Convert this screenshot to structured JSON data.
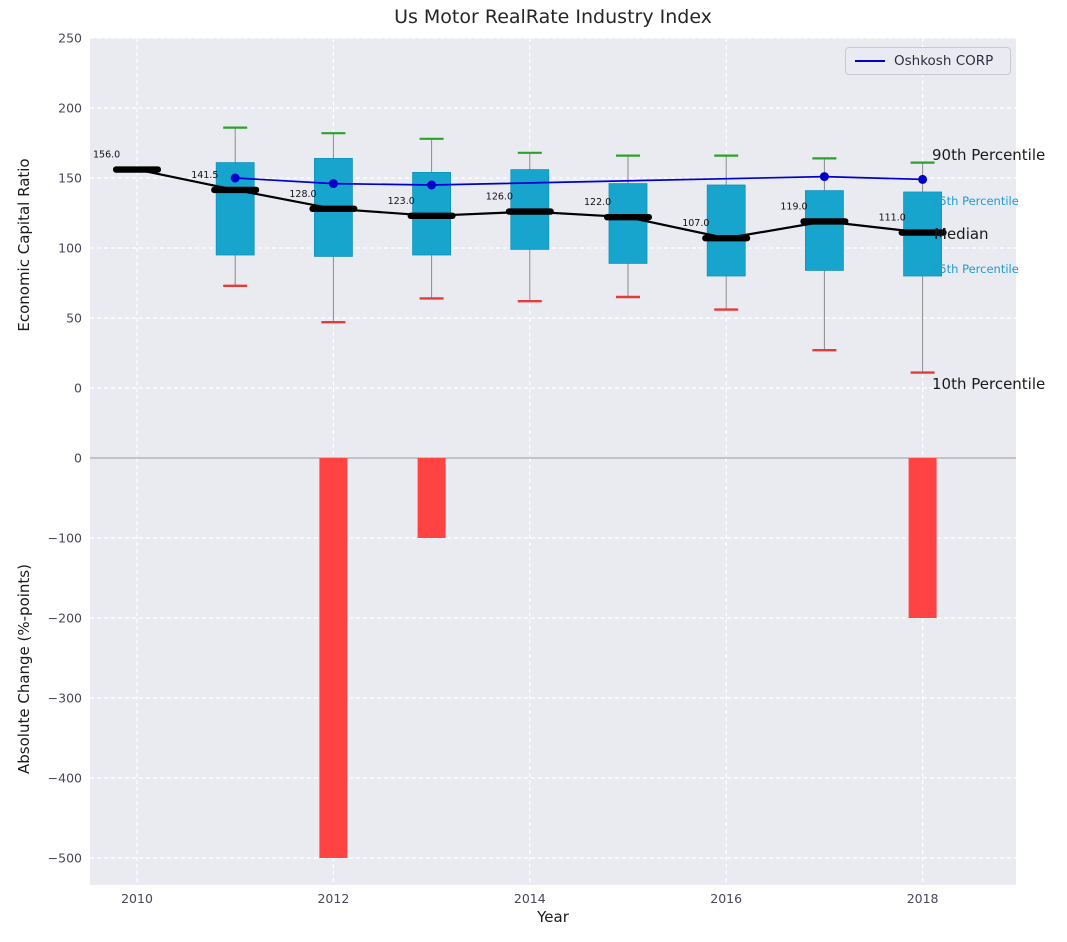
{
  "colors": {
    "plot_bg": "#eaebf1",
    "grid": "#ffffff",
    "box": "#18a5cd",
    "box_edge": "#1391b8",
    "cap_top": "#2ca02c",
    "cap_bottom": "#e43b3b",
    "whisker": "#8a8a8a",
    "median": "#000000",
    "oshkosh": "#0000cd",
    "bar": "#ff4343",
    "zero_line": "#aaaaaa",
    "tick_text": "#46465a",
    "label_text": "#1a1a1a",
    "annotation_cyan": "#1f9bcd"
  },
  "chart_data": [
    {
      "type": "boxplot",
      "title": "Us Motor RealRate Industry Index",
      "ylabel": "Economic Capital Ratio",
      "ylim": [
        -45,
        250
      ],
      "grid": true,
      "legend": {
        "label": "Oshkosh CORP",
        "position": "upper right"
      },
      "yticks": [
        {
          "v": 250,
          "label": "250"
        },
        {
          "v": 200,
          "label": "200"
        },
        {
          "v": 150,
          "label": "150"
        },
        {
          "v": 100,
          "label": "100"
        },
        {
          "v": 50,
          "label": "50"
        },
        {
          "v": 0,
          "label": "0"
        }
      ],
      "stats": [
        {
          "year": 2010,
          "median": 156.0,
          "label": "156.0"
        },
        {
          "year": 2011,
          "median": 141.5,
          "label": "141.5",
          "q1": 95,
          "q3": 161,
          "p10": 73,
          "p90": 186
        },
        {
          "year": 2012,
          "median": 128.0,
          "label": "128.0",
          "q1": 94,
          "q3": 164,
          "p10": 47,
          "p90": 182
        },
        {
          "year": 2013,
          "median": 123.0,
          "label": "123.0",
          "q1": 95,
          "q3": 154,
          "p10": 64,
          "p90": 178
        },
        {
          "year": 2014,
          "median": 126.0,
          "label": "126.0",
          "q1": 99,
          "q3": 156,
          "p10": 62,
          "p90": 168
        },
        {
          "year": 2015,
          "median": 122.0,
          "label": "122.0",
          "q1": 89,
          "q3": 146,
          "p10": 65,
          "p90": 166
        },
        {
          "year": 2016,
          "median": 107.0,
          "label": "107.0",
          "q1": 80,
          "q3": 145,
          "p10": 56,
          "p90": 166
        },
        {
          "year": 2017,
          "median": 119.0,
          "label": "119.0",
          "q1": 84,
          "q3": 141,
          "p10": 27,
          "p90": 164
        },
        {
          "year": 2018,
          "median": 111.0,
          "label": "111.0",
          "q1": 80,
          "q3": 140,
          "p10": 11,
          "p90": 161
        }
      ],
      "series": [
        {
          "name": "Oshkosh CORP",
          "points": [
            {
              "year": 2011,
              "v": 150
            },
            {
              "year": 2012,
              "v": 146
            },
            {
              "year": 2013,
              "v": 145
            },
            {
              "year": 2017,
              "v": 151
            },
            {
              "year": 2018,
              "v": 149
            }
          ]
        }
      ],
      "annotations": [
        {
          "text": "90th Percentile",
          "size": "large",
          "color": "black"
        },
        {
          "text": "75th Percentile",
          "size": "small",
          "color": "cyan"
        },
        {
          "text": "Median",
          "size": "large",
          "color": "black"
        },
        {
          "text": "25th Percentile",
          "size": "small",
          "color": "cyan"
        },
        {
          "text": "10th Percentile",
          "size": "large",
          "color": "black"
        }
      ]
    },
    {
      "type": "bar",
      "ylabel": "Absolute Change (%-points)",
      "xlabel": "Year",
      "ylim": [
        -534,
        8
      ],
      "grid": true,
      "yticks": [
        {
          "v": 0,
          "label": "0"
        },
        {
          "v": -100,
          "label": "−100"
        },
        {
          "v": -200,
          "label": "−200"
        },
        {
          "v": -300,
          "label": "−300"
        },
        {
          "v": -400,
          "label": "−400"
        },
        {
          "v": -500,
          "label": "−500"
        }
      ],
      "xticks": [
        {
          "v": 2010,
          "label": "2010"
        },
        {
          "v": 2012,
          "label": "2012"
        },
        {
          "v": 2014,
          "label": "2014"
        },
        {
          "v": 2016,
          "label": "2016"
        },
        {
          "v": 2018,
          "label": "2018"
        }
      ],
      "bars": [
        {
          "year": 2012,
          "value": -500
        },
        {
          "year": 2013,
          "value": -100
        },
        {
          "year": 2018,
          "value": -200
        }
      ]
    }
  ]
}
